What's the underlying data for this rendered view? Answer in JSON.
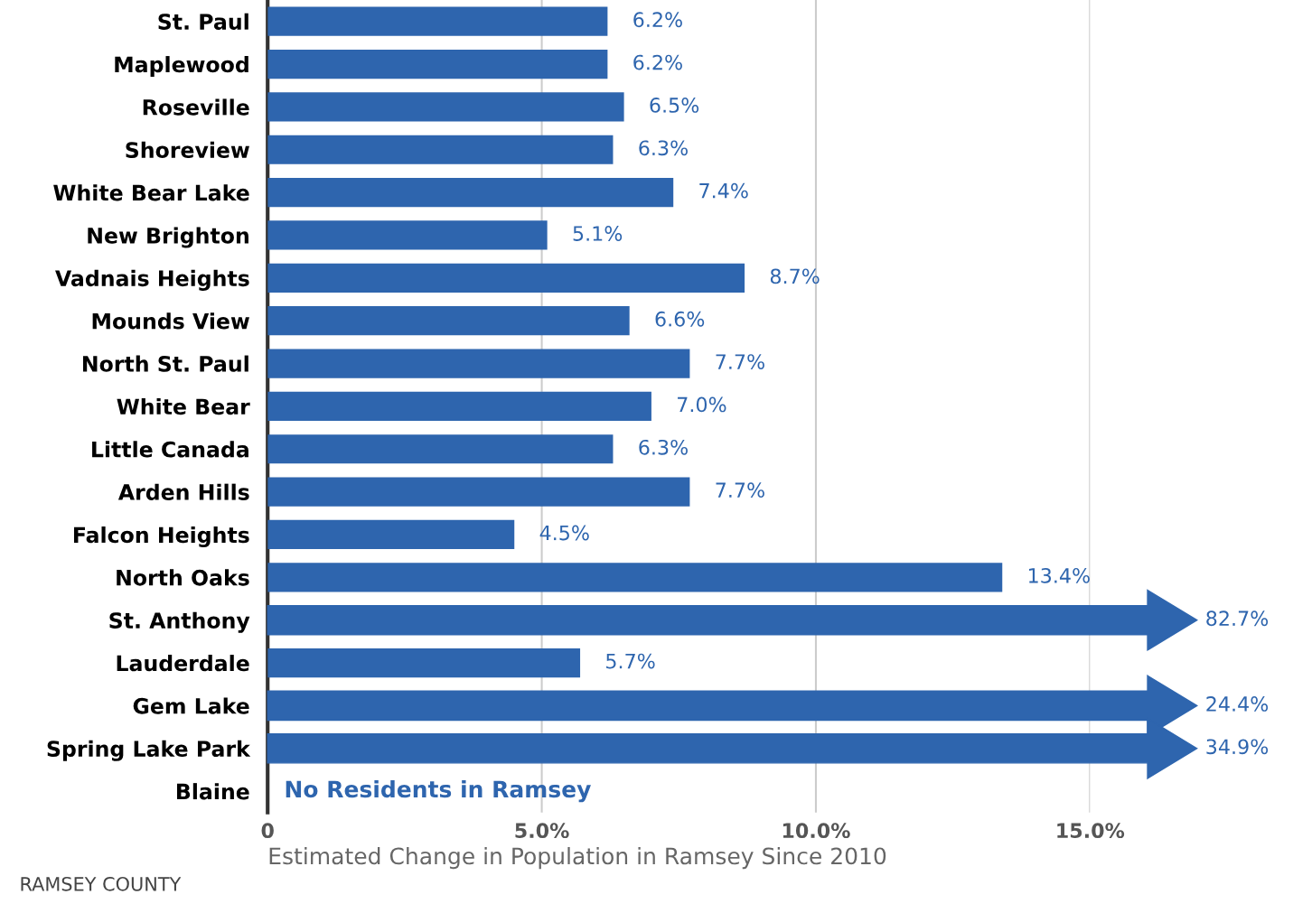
{
  "chart_data": {
    "type": "bar",
    "orientation": "horizontal",
    "categories": [
      "St. Paul",
      "Maplewood",
      "Roseville",
      "Shoreview",
      "White Bear Lake",
      "New Brighton",
      "Vadnais Heights",
      "Mounds View",
      "North St. Paul",
      "White Bear",
      "Little Canada",
      "Arden Hills",
      "Falcon Heights",
      "North Oaks",
      "St. Anthony",
      "Lauderdale",
      "Gem Lake",
      "Spring Lake Park",
      "Blaine"
    ],
    "values": [
      6.2,
      6.2,
      6.5,
      6.3,
      7.4,
      5.1,
      8.7,
      6.6,
      7.7,
      7.0,
      6.3,
      7.7,
      4.5,
      13.4,
      null,
      5.7,
      null,
      null,
      null
    ],
    "value_labels": [
      "6.2%",
      "6.2%",
      "6.5%",
      "6.3%",
      "7.4%",
      "5.1%",
      "8.7%",
      "6.6%",
      "7.7%",
      "7.0%",
      "6.3%",
      "7.7%",
      "4.5%",
      "13.4%",
      "82.7%",
      "5.7%",
      "24.4%",
      "34.9%",
      null
    ],
    "color": "#2e65ae",
    "xlabel": "Estimated Change in Population in Ramsey Since 2010",
    "xlim": [
      0,
      15
    ],
    "xticks": [
      {
        "value": 0,
        "label": "0"
      },
      {
        "value": 5,
        "label": "5.0%"
      },
      {
        "value": 10,
        "label": "10.0%"
      },
      {
        "value": 15,
        "label": "15.0%"
      }
    ],
    "grid": "x",
    "annotations": [
      "No Residents in Ramsey",
      "RAMSEY COUNTY"
    ]
  }
}
